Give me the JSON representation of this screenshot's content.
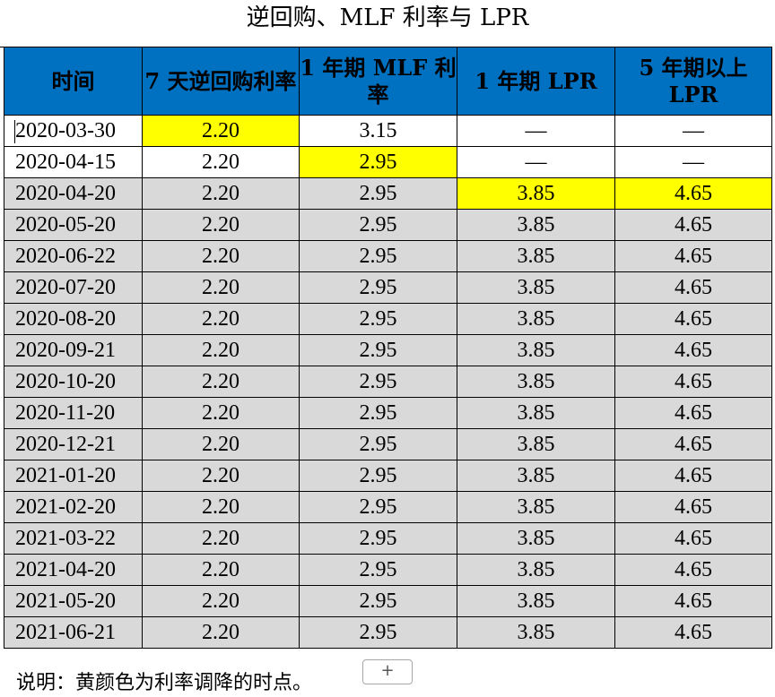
{
  "title": "逆回购、MLF 利率与 LPR",
  "columns": [
    "时间",
    "7 天逆回购利率",
    "1 年期 MLF 利率",
    "1 年期 LPR",
    "5 年期以上 LPR"
  ],
  "header_color": "#0070c0",
  "highlight_color": "#ffff00",
  "rows": [
    {
      "date": "2020-03-30",
      "repo": "2.20",
      "mlf": "3.15",
      "lpr1": "—",
      "lpr5": "—",
      "highlight": [
        "repo"
      ],
      "shade": "white"
    },
    {
      "date": "2020-04-15",
      "repo": "2.20",
      "mlf": "2.95",
      "lpr1": "—",
      "lpr5": "—",
      "highlight": [
        "mlf"
      ],
      "shade": "white"
    },
    {
      "date": "2020-04-20",
      "repo": "2.20",
      "mlf": "2.95",
      "lpr1": "3.85",
      "lpr5": "4.65",
      "highlight": [
        "lpr1",
        "lpr5"
      ],
      "shade": "gray"
    },
    {
      "date": "2020-05-20",
      "repo": "2.20",
      "mlf": "2.95",
      "lpr1": "3.85",
      "lpr5": "4.65",
      "highlight": [],
      "shade": "gray"
    },
    {
      "date": "2020-06-22",
      "repo": "2.20",
      "mlf": "2.95",
      "lpr1": "3.85",
      "lpr5": "4.65",
      "highlight": [],
      "shade": "gray"
    },
    {
      "date": "2020-07-20",
      "repo": "2.20",
      "mlf": "2.95",
      "lpr1": "3.85",
      "lpr5": "4.65",
      "highlight": [],
      "shade": "gray"
    },
    {
      "date": "2020-08-20",
      "repo": "2.20",
      "mlf": "2.95",
      "lpr1": "3.85",
      "lpr5": "4.65",
      "highlight": [],
      "shade": "gray"
    },
    {
      "date": "2020-09-21",
      "repo": "2.20",
      "mlf": "2.95",
      "lpr1": "3.85",
      "lpr5": "4.65",
      "highlight": [],
      "shade": "gray"
    },
    {
      "date": "2020-10-20",
      "repo": "2.20",
      "mlf": "2.95",
      "lpr1": "3.85",
      "lpr5": "4.65",
      "highlight": [],
      "shade": "gray"
    },
    {
      "date": "2020-11-20",
      "repo": "2.20",
      "mlf": "2.95",
      "lpr1": "3.85",
      "lpr5": "4.65",
      "highlight": [],
      "shade": "gray"
    },
    {
      "date": "2020-12-21",
      "repo": "2.20",
      "mlf": "2.95",
      "lpr1": "3.85",
      "lpr5": "4.65",
      "highlight": [],
      "shade": "gray"
    },
    {
      "date": "2021-01-20",
      "repo": "2.20",
      "mlf": "2.95",
      "lpr1": "3.85",
      "lpr5": "4.65",
      "highlight": [],
      "shade": "gray"
    },
    {
      "date": "2021-02-20",
      "repo": "2.20",
      "mlf": "2.95",
      "lpr1": "3.85",
      "lpr5": "4.65",
      "highlight": [],
      "shade": "gray"
    },
    {
      "date": "2021-03-22",
      "repo": "2.20",
      "mlf": "2.95",
      "lpr1": "3.85",
      "lpr5": "4.65",
      "highlight": [],
      "shade": "gray"
    },
    {
      "date": "2021-04-20",
      "repo": "2.20",
      "mlf": "2.95",
      "lpr1": "3.85",
      "lpr5": "4.65",
      "highlight": [],
      "shade": "gray"
    },
    {
      "date": "2021-05-20",
      "repo": "2.20",
      "mlf": "2.95",
      "lpr1": "3.85",
      "lpr5": "4.65",
      "highlight": [],
      "shade": "gray"
    },
    {
      "date": "2021-06-21",
      "repo": "2.20",
      "mlf": "2.95",
      "lpr1": "3.85",
      "lpr5": "4.65",
      "highlight": [],
      "shade": "gray"
    }
  ],
  "note": "说明：黄颜色为利率调降的时点。",
  "add_button": "+"
}
